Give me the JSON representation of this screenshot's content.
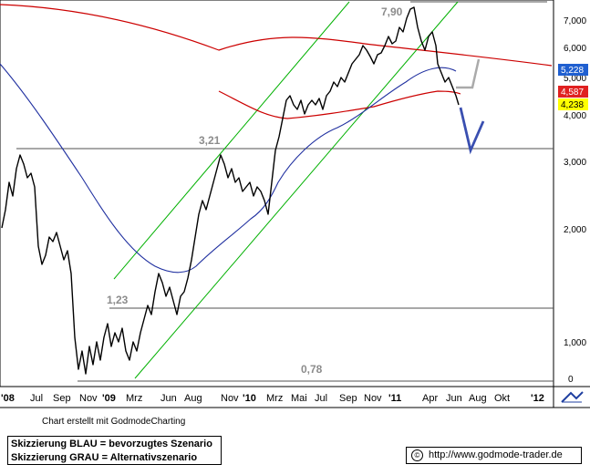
{
  "chart_data": {
    "type": "line",
    "y_scale": "log",
    "ylim": [
      0.72,
      9.0
    ],
    "x_tick_labels": [
      "'08",
      "Jul",
      "Sep",
      "Nov",
      "'09",
      "Mrz",
      "Jun",
      "Aug",
      "Nov",
      "'10",
      "Mrz",
      "Mai",
      "Jul",
      "Sep",
      "Nov",
      "'11",
      "Apr",
      "Jun",
      "Aug",
      "Okt",
      "'12"
    ],
    "y_tick_labels": [
      "7,000",
      "6,000",
      "5,000",
      "4,000",
      "3,000",
      "2,000",
      "1,000",
      "0"
    ],
    "annotations": [
      "7,90",
      "3,21",
      "1,23",
      "0,78"
    ],
    "price_badges": [
      {
        "label": "5,228",
        "bg": "#1f5fd0",
        "fg": "#ffffff"
      },
      {
        "label": "4,587",
        "bg": "#e02020",
        "fg": "#ffffff"
      },
      {
        "label": "4,238",
        "bg": "#ffff00",
        "fg": "#000000"
      }
    ],
    "colors": {
      "price": "#000000",
      "ma_blue": "#2030a0",
      "ma_red": "#cc0000",
      "channel": "#00b000",
      "horizontal": "#505050",
      "scenario_blue": "#3a4fb0",
      "scenario_grey": "#aaaaaa"
    }
  },
  "footer": {
    "credit": "Chart erstellt mit GodmodeCharting",
    "legend_line1": "Skizzierung BLAU = bevorzugtes Szenario",
    "legend_line2": "Skizzierung GRAU = Alternativszenario",
    "copyright_symbol": "©",
    "url": "http://www.godmode-trader.de"
  },
  "icons": {
    "corner": "chart-tool-icon"
  }
}
